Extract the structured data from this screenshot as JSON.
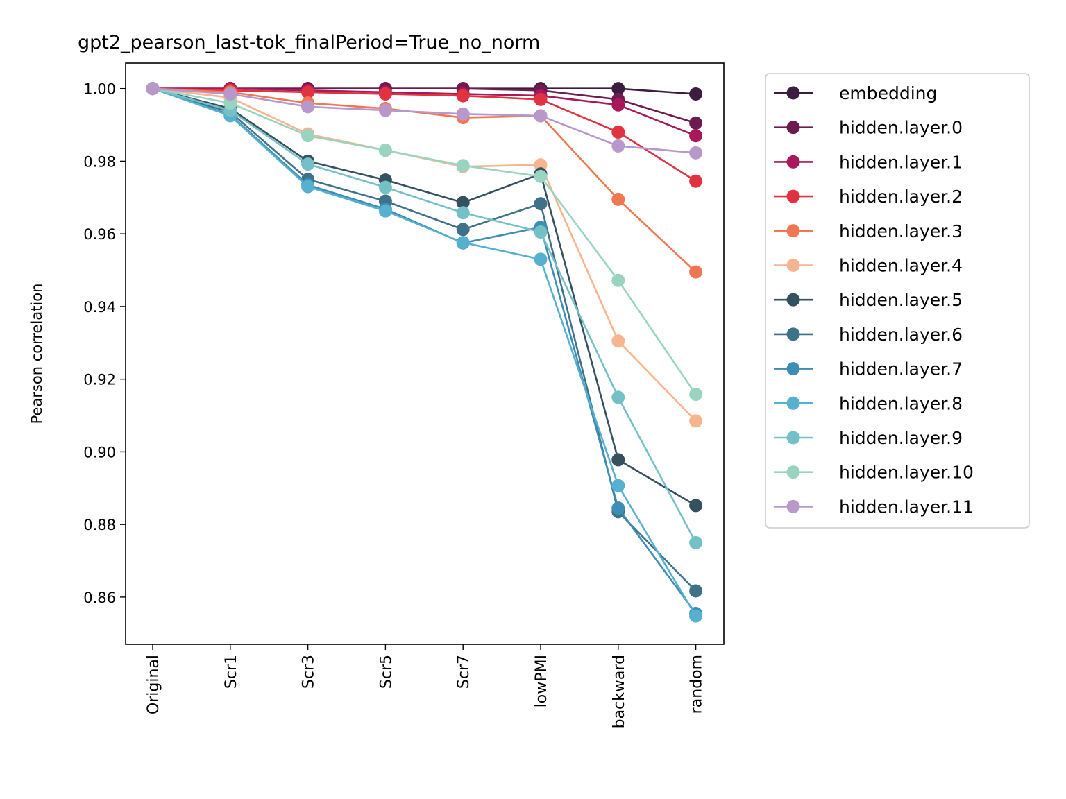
{
  "chart_data": {
    "type": "line",
    "title": "gpt2_pearson_last-tok_finalPeriod=True_no_norm",
    "xlabel": "",
    "ylabel": "Pearson correlation",
    "categories": [
      "Original",
      "Scr1",
      "Scr3",
      "Scr5",
      "Scr7",
      "lowPMI",
      "backward",
      "random"
    ],
    "ylim": [
      0.847,
      1.007
    ],
    "yticks": [
      "0.86",
      "0.88",
      "0.90",
      "0.92",
      "0.94",
      "0.96",
      "0.98",
      "1.00"
    ],
    "grid": false,
    "legend_position": "outside-right",
    "series": [
      {
        "name": "embedding",
        "color": "#3b1d3f",
        "values": [
          1.0,
          1.0,
          1.0,
          1.0,
          1.0,
          1.0,
          1.0,
          0.9985
        ]
      },
      {
        "name": "hidden.layer.0",
        "color": "#6e1c4f",
        "values": [
          1.0,
          1.0,
          1.0,
          1.0,
          1.0,
          0.9995,
          0.997,
          0.9905
        ]
      },
      {
        "name": "hidden.layer.1",
        "color": "#a8185a",
        "values": [
          1.0,
          1.0,
          0.9995,
          0.999,
          0.9985,
          0.998,
          0.9955,
          0.987
        ]
      },
      {
        "name": "hidden.layer.2",
        "color": "#e03241",
        "values": [
          1.0,
          0.9995,
          0.999,
          0.9985,
          0.998,
          0.997,
          0.988,
          0.9745
        ]
      },
      {
        "name": "hidden.layer.3",
        "color": "#f07752",
        "values": [
          1.0,
          0.999,
          0.996,
          0.9945,
          0.992,
          0.9925,
          0.9695,
          0.9495
        ]
      },
      {
        "name": "hidden.layer.4",
        "color": "#f6b48f",
        "values": [
          1.0,
          0.9975,
          0.9875,
          0.983,
          0.9785,
          0.979,
          0.9305,
          0.9085
        ]
      },
      {
        "name": "hidden.layer.5",
        "color": "#35505f",
        "values": [
          1.0,
          0.9945,
          0.98,
          0.9748,
          0.9686,
          0.9765,
          0.8978,
          0.8852
        ]
      },
      {
        "name": "hidden.layer.6",
        "color": "#3f7189",
        "values": [
          1.0,
          0.9935,
          0.975,
          0.969,
          0.9612,
          0.9683,
          0.8835,
          0.8617
        ]
      },
      {
        "name": "hidden.layer.7",
        "color": "#3d8db5",
        "values": [
          1.0,
          0.9928,
          0.9735,
          0.9668,
          0.9575,
          0.9618,
          0.8845,
          0.8555
        ]
      },
      {
        "name": "hidden.layer.8",
        "color": "#56b0cf",
        "values": [
          1.0,
          0.9925,
          0.973,
          0.9663,
          0.9576,
          0.953,
          0.8907,
          0.8548
        ]
      },
      {
        "name": "hidden.layer.9",
        "color": "#73c1c6",
        "values": [
          1.0,
          0.994,
          0.9792,
          0.9728,
          0.9658,
          0.9605,
          0.915,
          0.875
        ]
      },
      {
        "name": "hidden.layer.10",
        "color": "#99d4c0",
        "values": [
          1.0,
          0.996,
          0.987,
          0.983,
          0.9788,
          0.9758,
          0.9472,
          0.9158
        ]
      },
      {
        "name": "hidden.layer.11",
        "color": "#b898cb",
        "values": [
          1.0,
          0.9985,
          0.995,
          0.994,
          0.993,
          0.9925,
          0.9842,
          0.9823
        ]
      }
    ]
  }
}
